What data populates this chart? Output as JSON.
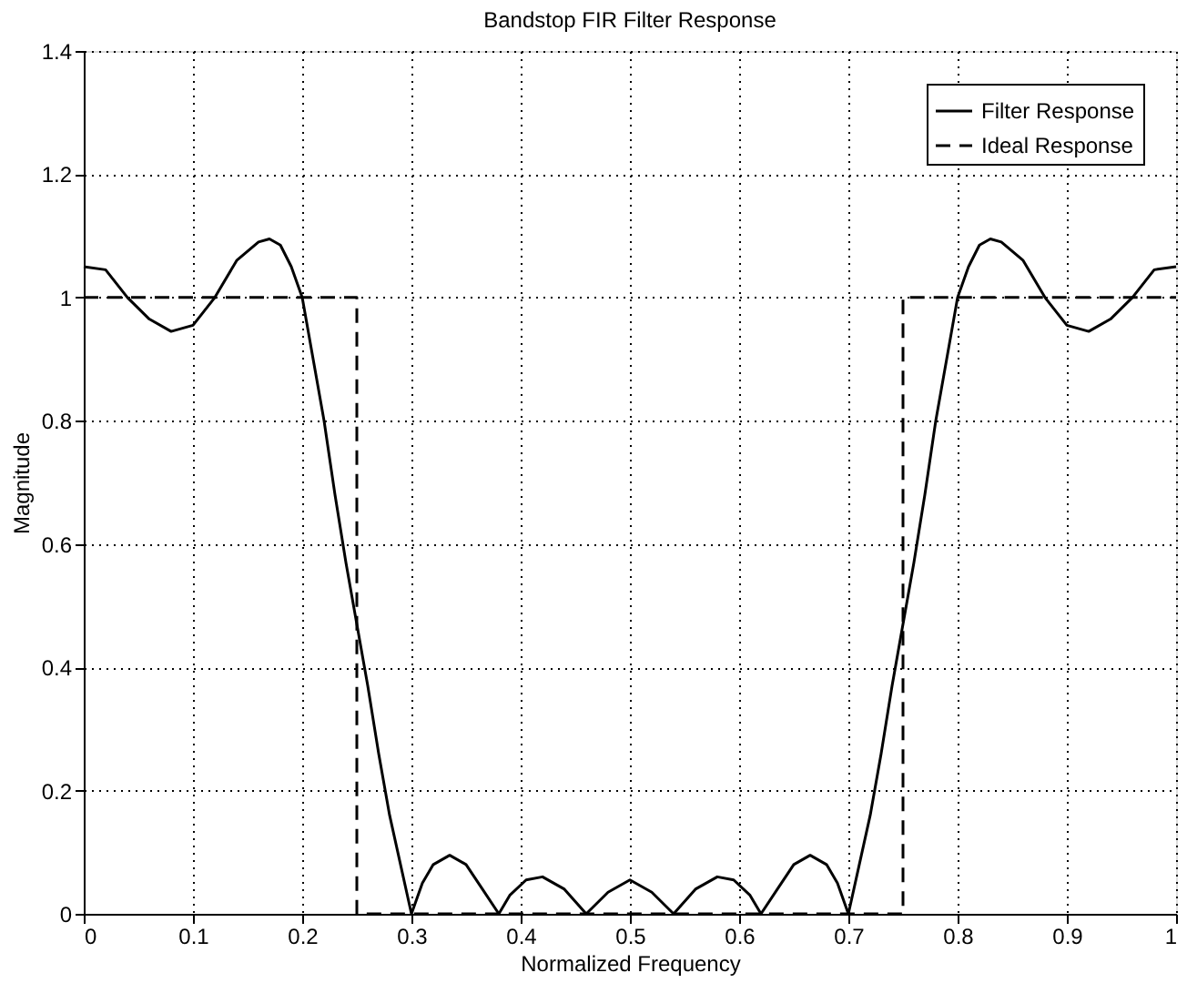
{
  "chart_data": {
    "type": "line",
    "title": "Bandstop FIR Filter Response",
    "xlabel": "Normalized Frequency",
    "ylabel": "Magnitude",
    "xlim": [
      0,
      1
    ],
    "ylim": [
      0,
      1.4
    ],
    "xticks": [
      0,
      0.1,
      0.2,
      0.3,
      0.4,
      0.5,
      0.6,
      0.7,
      0.8,
      0.9,
      1
    ],
    "yticks": [
      0,
      0.2,
      0.4,
      0.6,
      0.8,
      1,
      1.2,
      1.4
    ],
    "grid": true,
    "legend": "top right",
    "series": [
      {
        "name": "Filter Response",
        "color": "#000000",
        "line_style": "solid",
        "x": [
          0,
          0.02,
          0.04,
          0.06,
          0.08,
          0.1,
          0.12,
          0.14,
          0.16,
          0.17,
          0.18,
          0.19,
          0.2,
          0.21,
          0.22,
          0.23,
          0.24,
          0.25,
          0.26,
          0.27,
          0.28,
          0.29,
          0.3,
          0.31,
          0.32,
          0.335,
          0.35,
          0.365,
          0.38,
          0.39,
          0.405,
          0.42,
          0.44,
          0.46,
          0.48,
          0.5,
          0.52,
          0.54,
          0.56,
          0.58,
          0.595,
          0.61,
          0.62,
          0.635,
          0.65,
          0.665,
          0.68,
          0.69,
          0.7,
          0.71,
          0.72,
          0.73,
          0.74,
          0.75,
          0.76,
          0.77,
          0.78,
          0.79,
          0.8,
          0.81,
          0.82,
          0.83,
          0.84,
          0.86,
          0.88,
          0.9,
          0.92,
          0.94,
          0.96,
          0.98,
          1
        ],
        "values": [
          1.05,
          1.045,
          1.0,
          0.965,
          0.945,
          0.955,
          1.0,
          1.06,
          1.09,
          1.095,
          1.085,
          1.05,
          1.0,
          0.9,
          0.8,
          0.68,
          0.57,
          0.47,
          0.37,
          0.26,
          0.16,
          0.08,
          0.0,
          0.05,
          0.08,
          0.095,
          0.08,
          0.04,
          0.0,
          0.03,
          0.055,
          0.06,
          0.04,
          0.0,
          0.035,
          0.055,
          0.035,
          0.0,
          0.04,
          0.06,
          0.055,
          0.03,
          0.0,
          0.04,
          0.08,
          0.095,
          0.08,
          0.05,
          0.0,
          0.08,
          0.16,
          0.26,
          0.37,
          0.47,
          0.57,
          0.68,
          0.8,
          0.9,
          1.0,
          1.05,
          1.085,
          1.095,
          1.09,
          1.06,
          1.0,
          0.955,
          0.945,
          0.965,
          1.0,
          1.045,
          1.05
        ]
      },
      {
        "name": "Ideal Response",
        "color": "#000000",
        "line_style": "dashed",
        "x": [
          0,
          0.25,
          0.25,
          0.75,
          0.75,
          1
        ],
        "values": [
          1,
          1,
          0,
          0,
          1,
          1
        ]
      }
    ]
  }
}
